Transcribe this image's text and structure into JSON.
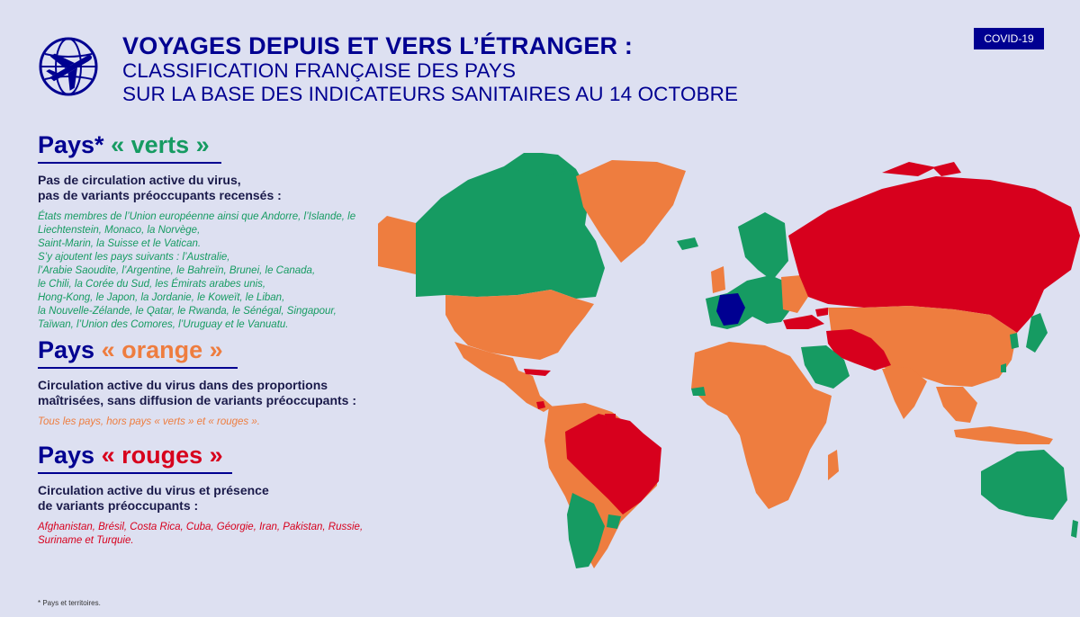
{
  "header": {
    "title": "VOYAGES DEPUIS ET VERS L’ÉTRANGER :",
    "subtitle_line1": "CLASSIFICATION FRANÇAISE DES PAYS",
    "subtitle_line2": "SUR LA BASE DES INDICATEURS SANITAIRES AU 14 OCTOBRE",
    "icon": "plane-globe-icon",
    "badge": "COVID-19"
  },
  "colors": {
    "navy": "#000091",
    "green": "#169b62",
    "orange": "#ee7d3f",
    "red": "#d7001d",
    "france": "#000091",
    "background": "#dde0f1"
  },
  "sections": {
    "green": {
      "title_prefix": "Pays*",
      "title_colored": "« verts »",
      "description": "Pas de circulation active du virus,\npas de variants préoccupants recensés :",
      "countries": "États membres de l’Union européenne ainsi que Andorre, l’Islande, le\nLiechtenstein, Monaco, la Norvège,\nSaint-Marin, la Suisse et le Vatican.\nS’y ajoutent les pays suivants : l’Australie,\nl’Arabie Saoudite, l’Argentine, le Bahreïn, Brunei, le Canada,\nle Chili, la Corée du Sud, les Émirats arabes unis,\nHong-Kong, le Japon, la Jordanie, le Koweït, le Liban,\nla Nouvelle-Zélande, le Qatar, le Rwanda, le Sénégal, Singapour,\nTaïwan, l’Union des Comores, l’Uruguay et le Vanuatu."
    },
    "orange": {
      "title_prefix": "Pays",
      "title_colored": "« orange »",
      "description": "Circulation active du virus dans des proportions\nmaîtrisées, sans diffusion de variants préoccupants :",
      "countries": "Tous les pays, hors pays « verts » et « rouges »."
    },
    "red": {
      "title_prefix": "Pays",
      "title_colored": "« rouges »",
      "description": "Circulation active du virus et présence\nde variants préoccupants :",
      "countries": "Afghanistan, Brésil, Costa Rica, Cuba, Géorgie, Iran, Pakistan, Russie,\nSuriname et Turquie."
    }
  },
  "footnote": "* Pays et territoires."
}
